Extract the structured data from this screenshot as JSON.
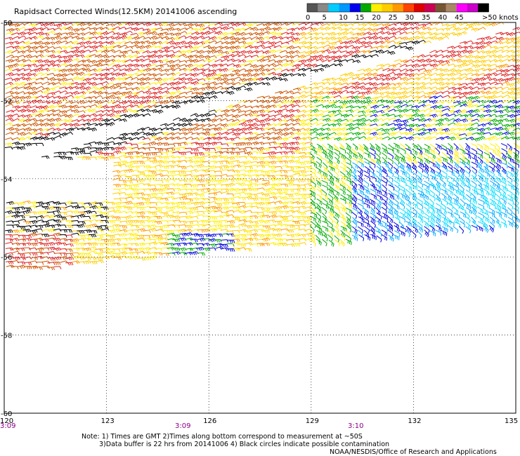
{
  "title": "Rapidsact Corrected Winds(12.5KM) 20141006 ascending",
  "legend": {
    "labels": [
      "0",
      "5",
      "10",
      "15",
      "20",
      "25",
      "30",
      "35",
      "40",
      "45",
      ">50 knots"
    ],
    "colors": [
      "#555555",
      "#888888",
      "#00ccff",
      "#0099ff",
      "#0000ee",
      "#00aa00",
      "#ffee00",
      "#ffcc00",
      "#ff9900",
      "#ff4400",
      "#dd0000",
      "#cc0055",
      "#775533",
      "#aa8866",
      "#ff00ff",
      "#cc00cc",
      "#000000"
    ]
  },
  "axes": {
    "lat_labels": [
      "-50",
      "-52",
      "-54",
      "-56",
      "-58",
      "-60"
    ],
    "lon_labels": [
      "120",
      "123",
      "126",
      "129",
      "132",
      "135"
    ],
    "time_labels": [
      "3:09",
      "3:09",
      "3:10"
    ]
  },
  "notes": {
    "line1": "Note: 1) Times are GMT 2)Times along bottom correspond to measurement at ~50S",
    "line2": "3)Data buffer is 22 hrs from 20141006 4) Black circles indicate possible contamination",
    "credit": "NOAA/NESDIS/Office of Research and Applications"
  },
  "barb_colors": {
    "black": "#000000",
    "red": "#dd2222",
    "dark_orange": "#cc5500",
    "orange": "#ff9900",
    "gold": "#ffcc00",
    "yellow": "#ffee00",
    "green": "#00aa00",
    "blue": "#0000dd",
    "light_blue": "#00aaff",
    "cyan": "#00ddff"
  }
}
